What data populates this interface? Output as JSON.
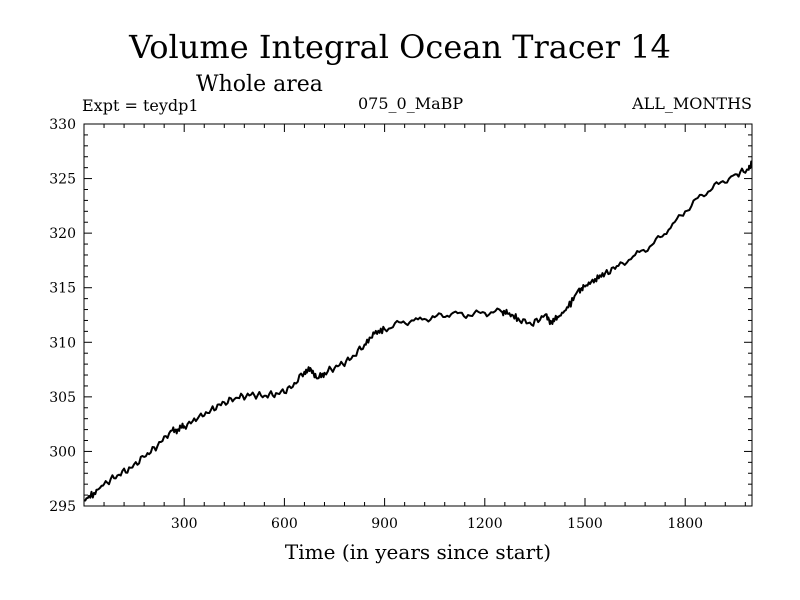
{
  "header": {
    "title": "Volume Integral Ocean Tracer 14",
    "subtitle": "Whole area",
    "expt": "Expt = teydp1",
    "run": "075_0_MaBP",
    "months": "ALL_MONTHS"
  },
  "chart_data": {
    "type": "line",
    "title": "Volume Integral Ocean Tracer 14",
    "subtitle": "Whole area",
    "xlabel": "Time (in years since start)",
    "ylabel": "",
    "xlim": [
      0,
      2000
    ],
    "ylim": [
      295,
      330
    ],
    "xticks": [
      300,
      600,
      900,
      1200,
      1500,
      1800
    ],
    "yticks": [
      295,
      300,
      305,
      310,
      315,
      320,
      325,
      330
    ],
    "grid": false,
    "series": [
      {
        "values_x": [
          0,
          30,
          60,
          100,
          140,
          180,
          220,
          260,
          280,
          300,
          340,
          380,
          420,
          460,
          500,
          540,
          580,
          620,
          660,
          680,
          700,
          720,
          760,
          800,
          840,
          870,
          900,
          950,
          1000,
          1050,
          1100,
          1150,
          1200,
          1250,
          1270,
          1300,
          1340,
          1380,
          1400,
          1420,
          1450,
          1480,
          1500,
          1530,
          1560,
          1600,
          1650,
          1700,
          1750,
          1800,
          1850,
          1900,
          1950,
          1990,
          2000
        ],
        "values_y": [
          295.5,
          296.2,
          297.0,
          297.8,
          298.5,
          299.5,
          300.5,
          301.9,
          302.0,
          302.3,
          303.0,
          303.8,
          304.5,
          304.9,
          305.2,
          305.1,
          305.3,
          305.8,
          307.3,
          307.5,
          306.7,
          307.2,
          307.8,
          308.5,
          309.8,
          310.8,
          311.2,
          311.8,
          312.1,
          312.3,
          312.6,
          312.5,
          312.7,
          312.8,
          312.6,
          312.2,
          311.6,
          312.5,
          311.8,
          312.3,
          313.2,
          314.8,
          315.1,
          315.8,
          316.3,
          317.0,
          318.0,
          318.9,
          320.3,
          322.0,
          323.5,
          324.5,
          325.4,
          325.8,
          326.5
        ]
      }
    ]
  }
}
